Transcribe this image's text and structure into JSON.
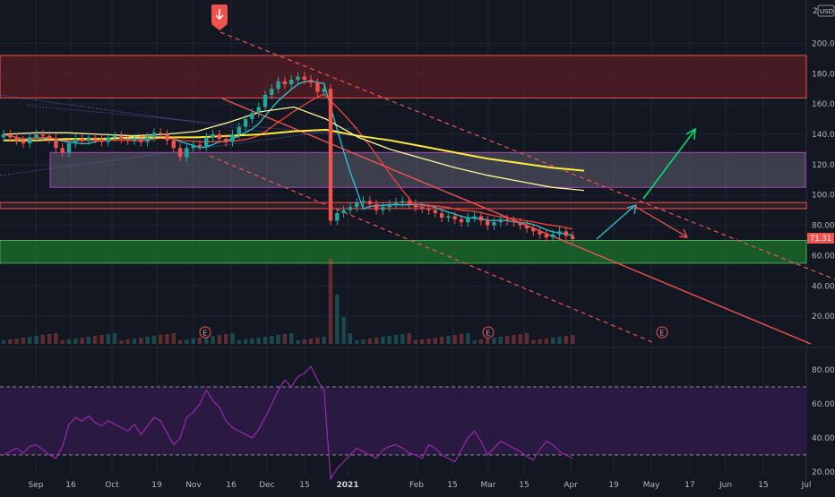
{
  "toolbar": {
    "currency_label": "USD",
    "scale_label": "2"
  },
  "colors": {
    "bg": "#131722",
    "grid": "#1f2433",
    "up": "#26a69a",
    "down": "#ef5350",
    "resistance_zone": "#5a1e26",
    "mid_zone": "#6e6e80",
    "support_zone": "#1c6b2c",
    "rsi_band": "#2d1a45",
    "rsi_line": "#9c27b0",
    "ma_yellow": "#ffeb3b",
    "ma_red": "#f44336",
    "ma_teal": "#26c6da",
    "ma_cream": "#fff59d",
    "channel": "#ef5350",
    "arrow_teal": "#26c6da",
    "arrow_green": "#00e676"
  },
  "chart_data": [
    {
      "type": "candlestick",
      "panel": "price",
      "y_axis_ticks": [
        "200.00",
        "180.00",
        "160.00",
        "140.00",
        "120.00",
        "100.00",
        "80.00",
        "60.00",
        "40.00",
        "20.00"
      ],
      "ylim": [
        0,
        210
      ],
      "x_axis_ticks": [
        "Sep",
        "16",
        "Oct",
        "19",
        "Nov",
        "16",
        "Dec",
        "15",
        "2021",
        "Feb",
        "15",
        "Mar",
        "15",
        "Apr",
        "19",
        "May",
        "17",
        "Jun",
        "15",
        "Jul"
      ],
      "current_price_label": "71.31",
      "earnings_markers": [
        "E",
        "E",
        "E"
      ],
      "zones": [
        {
          "name": "resistance",
          "from": 164,
          "to": 192
        },
        {
          "name": "mid-range",
          "from": 105,
          "to": 128
        },
        {
          "name": "support",
          "from": 55,
          "to": 70
        },
        {
          "name": "thin-resistance",
          "from": 91,
          "to": 95
        }
      ],
      "close_series": [
        140,
        138,
        136,
        134,
        138,
        140,
        139,
        137,
        131,
        128,
        134,
        137,
        136,
        138,
        137,
        135,
        138,
        139,
        137,
        136,
        137,
        135,
        138,
        141,
        140,
        136,
        131,
        125,
        131,
        133,
        132,
        138,
        140,
        137,
        135,
        140,
        145,
        150,
        154,
        158,
        166,
        170,
        175,
        173,
        176,
        178,
        176,
        174,
        168,
        170,
        83,
        88,
        90,
        92,
        95,
        96,
        94,
        90,
        92,
        94,
        95,
        96,
        94,
        92,
        91,
        90,
        88,
        85,
        86,
        84,
        82,
        85,
        86,
        83,
        80,
        82,
        84,
        83,
        82,
        80,
        78,
        76,
        74,
        72,
        74,
        76,
        73,
        71
      ]
    },
    {
      "type": "line",
      "panel": "rsi",
      "y_axis_ticks": [
        "80.00",
        "60.00",
        "40.00",
        "20.00"
      ],
      "ylim": [
        10,
        90
      ],
      "levels": [
        70,
        30
      ],
      "values": [
        30,
        32,
        34,
        31,
        35,
        36,
        33,
        30,
        28,
        35,
        48,
        52,
        50,
        53,
        49,
        47,
        50,
        48,
        46,
        44,
        48,
        42,
        47,
        52,
        50,
        43,
        36,
        40,
        52,
        55,
        60,
        68,
        62,
        58,
        50,
        46,
        44,
        42,
        40,
        45,
        52,
        60,
        68,
        74,
        70,
        76,
        78,
        82,
        74,
        68,
        16,
        22,
        26,
        30,
        34,
        32,
        30,
        28,
        33,
        35,
        36,
        34,
        31,
        30,
        28,
        36,
        34,
        30,
        28,
        26,
        33,
        40,
        44,
        38,
        30,
        34,
        38,
        36,
        34,
        32,
        29,
        27,
        33,
        38,
        36,
        32,
        30,
        28
      ]
    }
  ]
}
